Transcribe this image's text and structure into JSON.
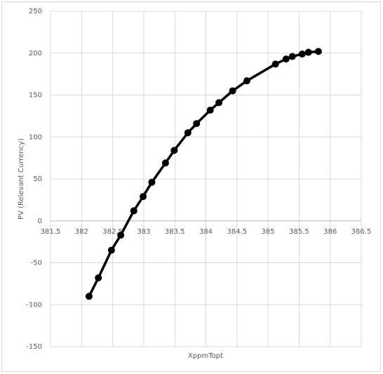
{
  "chart_data": {
    "type": "scatter-line",
    "x_label": "XppmTopt",
    "y_label": "PV (Relevant Currency)",
    "series": [
      {
        "name": "PV",
        "color": "#000000",
        "x": [
          382.12,
          382.27,
          382.48,
          382.63,
          382.84,
          382.99,
          383.13,
          383.35,
          383.49,
          383.71,
          383.85,
          384.07,
          384.21,
          384.43,
          384.66,
          385.12,
          385.29,
          385.39,
          385.55,
          385.65,
          385.81
        ],
        "values": [
          -90,
          -68,
          -35,
          -17,
          12,
          29,
          46,
          69,
          84,
          105,
          116,
          132,
          141,
          155,
          167,
          187,
          193,
          196,
          199,
          201,
          202
        ]
      }
    ],
    "xlim": [
      381.5,
      386.5
    ],
    "xticks": [
      381.5,
      382,
      382.5,
      383,
      383.5,
      384,
      384.5,
      385,
      385.5,
      386,
      386.5
    ],
    "ylim": [
      -150,
      250
    ],
    "yticks": [
      -150,
      -100,
      -50,
      0,
      50,
      100,
      150,
      200,
      250
    ],
    "grid": true
  }
}
